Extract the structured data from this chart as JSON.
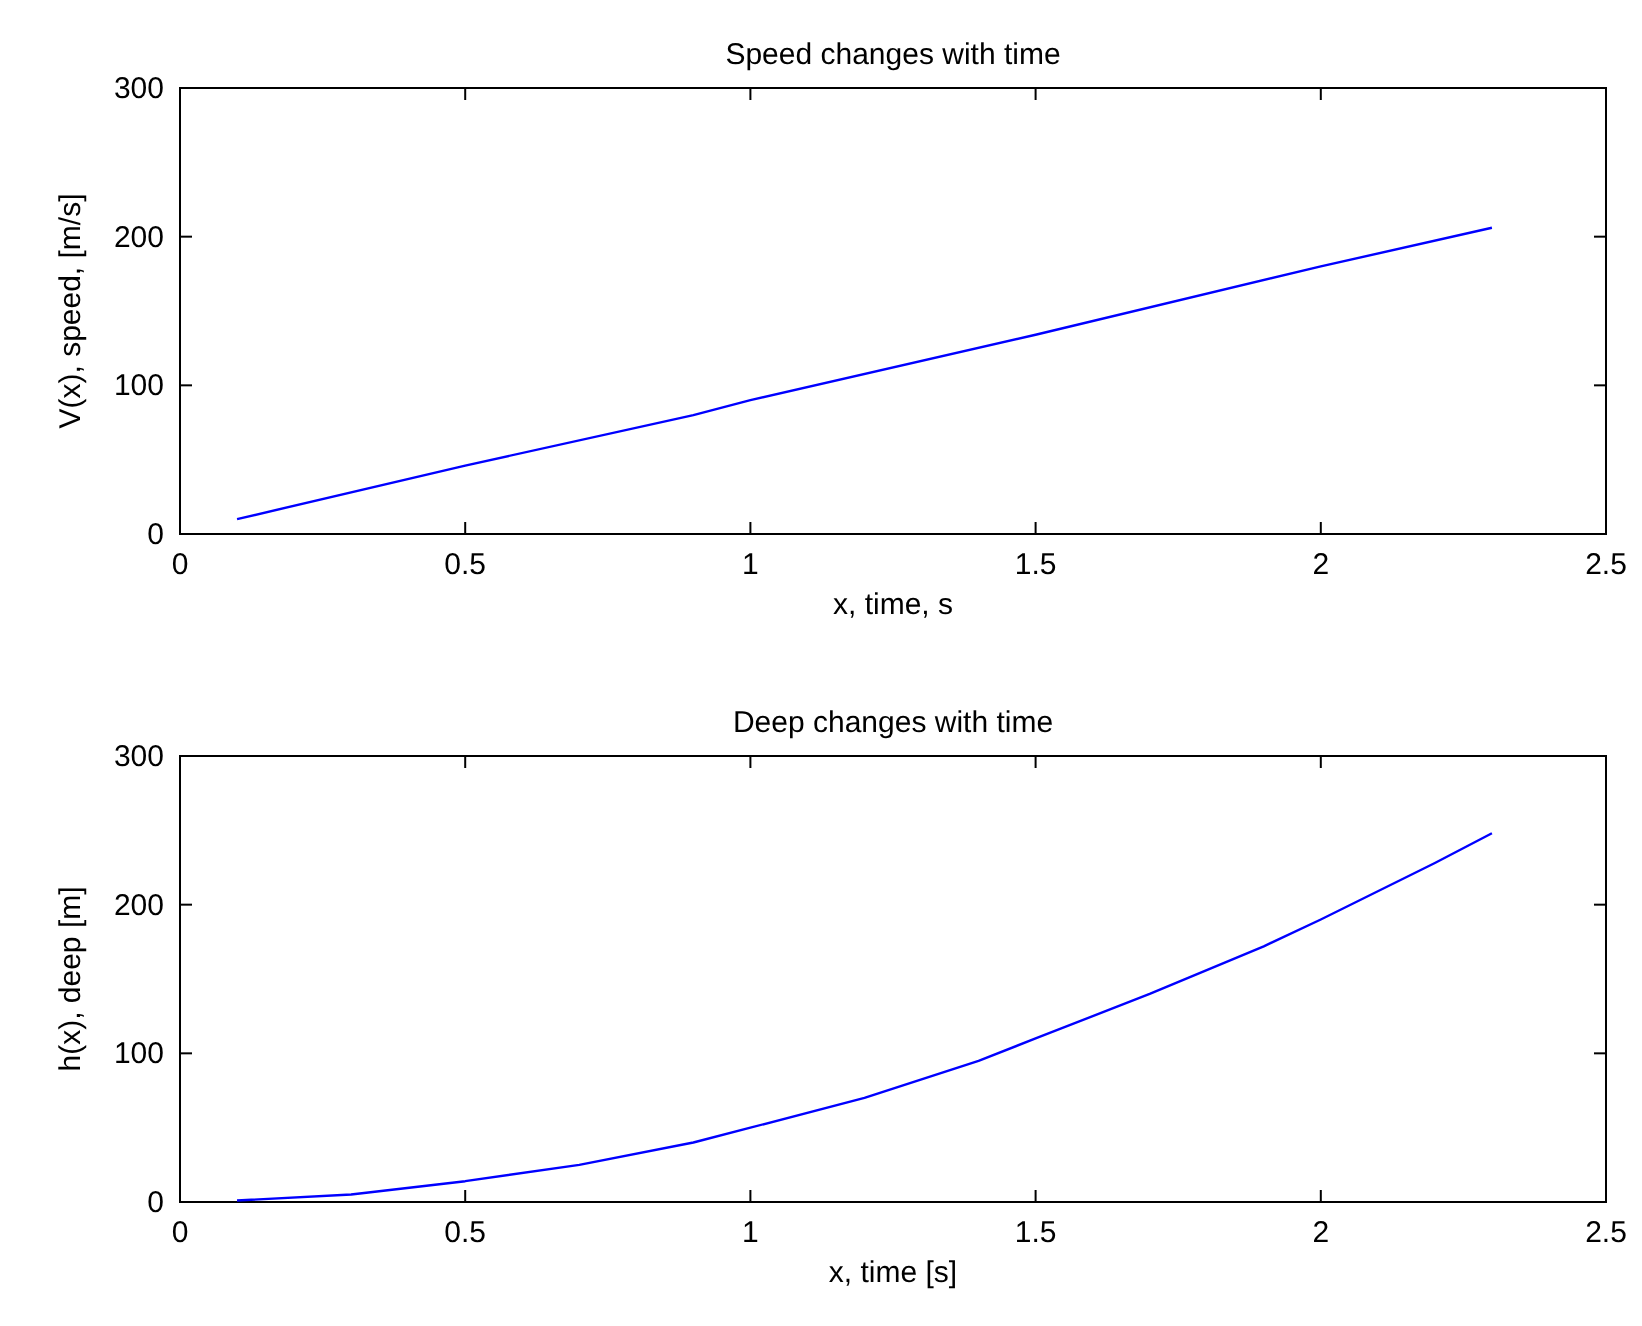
{
  "chart_data": [
    {
      "type": "line",
      "title": "Speed changes with time",
      "xlabel": "x, time, s",
      "ylabel": "V(x), speed, [m/s]",
      "xlim": [
        0,
        2.5
      ],
      "xticks": [
        0,
        0.5,
        1,
        1.5,
        2,
        2.5
      ],
      "ylim": [
        0,
        300
      ],
      "yticks": [
        0,
        100,
        200,
        300
      ],
      "grid": false,
      "series": [
        {
          "color": "#0000ff",
          "x": [
            0.1,
            0.5,
            0.9,
            1.0,
            1.5,
            2.0,
            2.3
          ],
          "values": [
            10,
            46,
            80,
            90,
            134,
            180,
            206
          ]
        }
      ]
    },
    {
      "type": "line",
      "title": "Deep changes with time",
      "xlabel": "x, time [s]",
      "ylabel": "h(x), deep [m]",
      "xlim": [
        0,
        2.5
      ],
      "xticks": [
        0,
        0.5,
        1,
        1.5,
        2,
        2.5
      ],
      "ylim": [
        0,
        300
      ],
      "yticks": [
        0,
        100,
        200,
        300
      ],
      "grid": false,
      "series": [
        {
          "color": "#0000ff",
          "x": [
            0.1,
            0.3,
            0.5,
            0.7,
            0.9,
            1.0,
            1.2,
            1.4,
            1.5,
            1.7,
            1.9,
            2.0,
            2.2,
            2.3
          ],
          "values": [
            1,
            5,
            14,
            25,
            40,
            50,
            70,
            95,
            110,
            140,
            172,
            190,
            228,
            248
          ]
        }
      ]
    }
  ]
}
